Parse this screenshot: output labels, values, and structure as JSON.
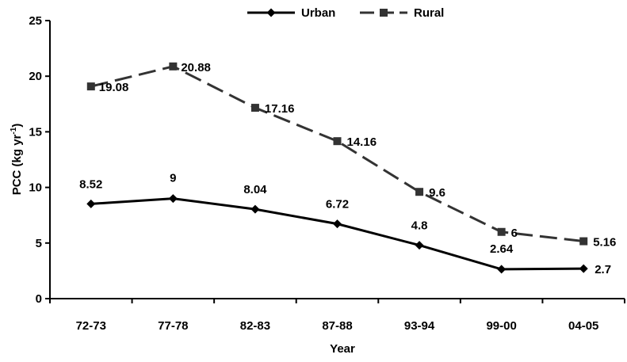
{
  "chart_data": {
    "type": "line",
    "title": "",
    "xlabel": "Year",
    "ylabel_main": "PCC (kg yr",
    "ylabel_sup": "-1",
    "ylabel_tail": ")",
    "categories": [
      "72-73",
      "77-78",
      "82-83",
      "87-88",
      "93-94",
      "99-00",
      "04-05"
    ],
    "yticks": [
      0,
      5,
      10,
      15,
      20,
      25
    ],
    "ylim": [
      0,
      25
    ],
    "grid": false,
    "legend_position": "top",
    "series": [
      {
        "name": "Urban",
        "values": [
          8.52,
          9,
          8.04,
          6.72,
          4.8,
          2.64,
          2.7
        ],
        "labels": [
          "8.52",
          "9",
          "8.04",
          "6.72",
          "4.8",
          "2.64",
          "2.7"
        ],
        "color": "#000000",
        "line_style": "solid",
        "marker": "diamond"
      },
      {
        "name": "Rural",
        "values": [
          19.08,
          20.88,
          17.16,
          14.16,
          9.6,
          6,
          5.16
        ],
        "labels": [
          "19.08",
          "20.88",
          "17.16",
          "14.16",
          "9.6",
          "6",
          "5.16"
        ],
        "color": "#333333",
        "line_style": "dashed",
        "marker": "square"
      }
    ]
  }
}
